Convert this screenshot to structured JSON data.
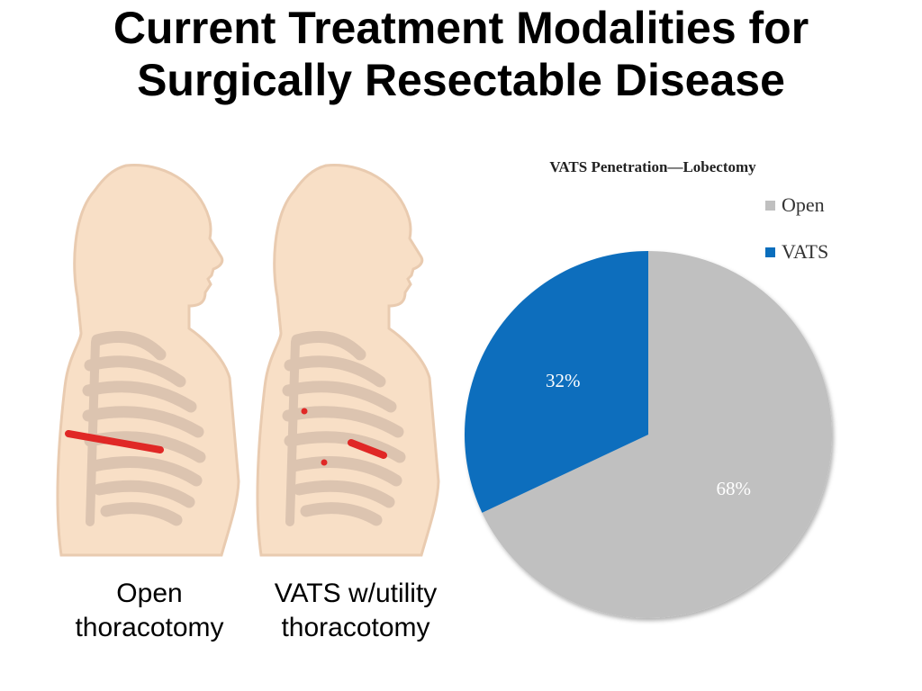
{
  "slide": {
    "title_line1": "Current Treatment Modalities for",
    "title_line2": "Surgically Resectable Disease"
  },
  "figures": [
    {
      "caption_line1": "Open",
      "caption_line2": "thoracotomy",
      "icon": "torso-open-thoracotomy-incision"
    },
    {
      "caption_line1": "VATS w/utility",
      "caption_line2": "thoracotomy",
      "icon": "torso-vats-port-incisions"
    }
  ],
  "colors": {
    "skin": "#f8dfc6",
    "skin_outline": "#e9cbb0",
    "ribs": "#dcc4b0",
    "incision": "#e02826",
    "open_slice": "#c0c0c0",
    "vats_slice": "#0a6ebd"
  },
  "chart_data": {
    "type": "pie",
    "title": "VATS Penetration—Lobectomy",
    "legend_position": "top-right",
    "start_angle": "12 o'clock, clockwise",
    "series": [
      {
        "name": "Open",
        "value": 68,
        "label": "68%",
        "color": "#c0c0c0"
      },
      {
        "name": "VATS",
        "value": 32,
        "label": "32%",
        "color": "#0a6ebd"
      }
    ]
  }
}
